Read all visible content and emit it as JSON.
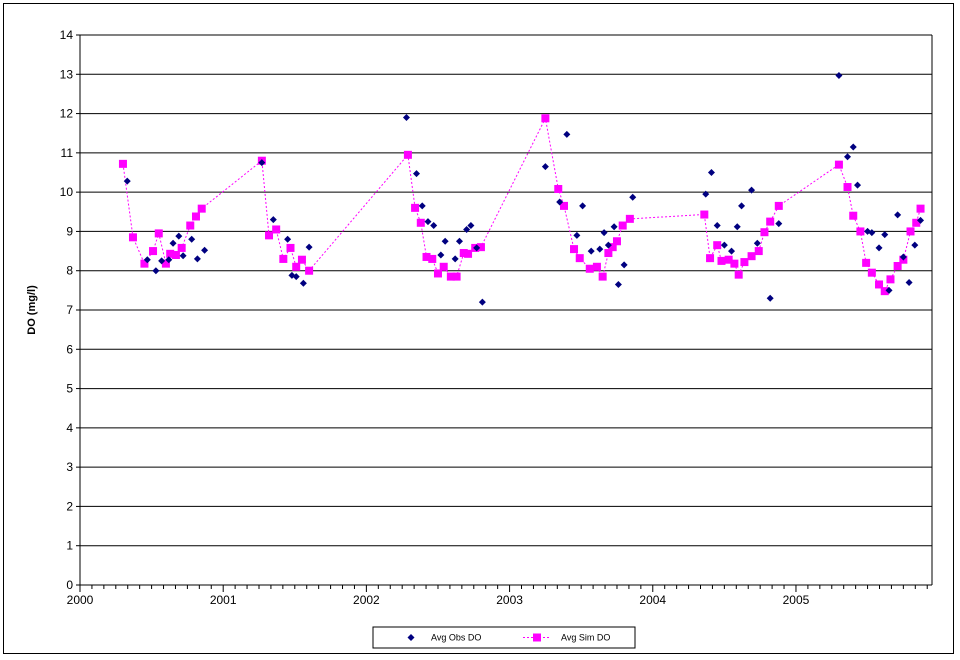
{
  "chart_data": {
    "type": "scatter",
    "title": "",
    "xlabel": "",
    "ylabel": "DO (mg/l)",
    "xlim": [
      2000,
      2005.95
    ],
    "ylim": [
      0,
      14
    ],
    "x_ticks": [
      "2000",
      "2001",
      "2002",
      "2003",
      "2004",
      "2005"
    ],
    "y_ticks": [
      "0",
      "1",
      "2",
      "3",
      "4",
      "5",
      "6",
      "7",
      "8",
      "9",
      "10",
      "11",
      "12",
      "13",
      "14"
    ],
    "grid": "horizontal",
    "legend_position": "bottom",
    "series": [
      {
        "name": "Avg Obs DO",
        "style": "marker-diamond",
        "color": "#000080",
        "points": [
          [
            2000.33,
            10.28
          ],
          [
            2000.47,
            8.28
          ],
          [
            2000.53,
            8.0
          ],
          [
            2000.57,
            8.25
          ],
          [
            2000.62,
            8.28
          ],
          [
            2000.65,
            8.7
          ],
          [
            2000.69,
            8.88
          ],
          [
            2000.72,
            8.38
          ],
          [
            2000.78,
            8.8
          ],
          [
            2000.82,
            8.3
          ],
          [
            2000.87,
            8.52
          ],
          [
            2001.27,
            10.75
          ],
          [
            2001.35,
            9.3
          ],
          [
            2001.45,
            8.8
          ],
          [
            2001.48,
            7.88
          ],
          [
            2001.51,
            7.85
          ],
          [
            2001.56,
            7.68
          ],
          [
            2001.6,
            8.6
          ],
          [
            2002.28,
            11.9
          ],
          [
            2002.35,
            10.47
          ],
          [
            2002.39,
            9.65
          ],
          [
            2002.43,
            9.25
          ],
          [
            2002.47,
            9.15
          ],
          [
            2002.52,
            8.4
          ],
          [
            2002.55,
            8.75
          ],
          [
            2002.62,
            8.3
          ],
          [
            2002.65,
            8.75
          ],
          [
            2002.7,
            9.05
          ],
          [
            2002.73,
            9.15
          ],
          [
            2002.77,
            8.58
          ],
          [
            2002.81,
            7.2
          ],
          [
            2003.25,
            10.65
          ],
          [
            2003.35,
            9.75
          ],
          [
            2003.4,
            11.47
          ],
          [
            2003.47,
            8.9
          ],
          [
            2003.51,
            9.65
          ],
          [
            2003.57,
            8.5
          ],
          [
            2003.63,
            8.55
          ],
          [
            2003.66,
            8.97
          ],
          [
            2003.69,
            8.65
          ],
          [
            2003.73,
            9.12
          ],
          [
            2003.76,
            7.65
          ],
          [
            2003.8,
            8.15
          ],
          [
            2003.86,
            9.87
          ],
          [
            2004.37,
            9.95
          ],
          [
            2004.41,
            10.5
          ],
          [
            2004.45,
            9.15
          ],
          [
            2004.5,
            8.65
          ],
          [
            2004.55,
            8.5
          ],
          [
            2004.59,
            9.12
          ],
          [
            2004.62,
            9.65
          ],
          [
            2004.69,
            10.05
          ],
          [
            2004.73,
            8.7
          ],
          [
            2004.82,
            7.3
          ],
          [
            2004.88,
            9.2
          ],
          [
            2005.3,
            12.97
          ],
          [
            2005.36,
            10.9
          ],
          [
            2005.4,
            11.15
          ],
          [
            2005.43,
            10.18
          ],
          [
            2005.5,
            9.0
          ],
          [
            2005.53,
            8.97
          ],
          [
            2005.58,
            8.58
          ],
          [
            2005.62,
            8.92
          ],
          [
            2005.65,
            7.5
          ],
          [
            2005.71,
            9.42
          ],
          [
            2005.75,
            8.35
          ],
          [
            2005.79,
            7.7
          ],
          [
            2005.83,
            8.65
          ],
          [
            2005.87,
            9.28
          ]
        ]
      },
      {
        "name": "Avg Sim DO",
        "style": "marker-square-dotted-line",
        "color": "#ff00ff",
        "points": [
          [
            2000.3,
            10.72
          ],
          [
            2000.37,
            8.85
          ],
          [
            2000.45,
            8.18
          ],
          [
            2000.51,
            8.5
          ],
          [
            2000.55,
            8.95
          ],
          [
            2000.6,
            8.18
          ],
          [
            2000.63,
            8.43
          ],
          [
            2000.67,
            8.4
          ],
          [
            2000.71,
            8.58
          ],
          [
            2000.77,
            9.15
          ],
          [
            2000.81,
            9.38
          ],
          [
            2000.85,
            9.58
          ],
          [
            2001.27,
            10.8
          ],
          [
            2001.32,
            8.9
          ],
          [
            2001.37,
            9.05
          ],
          [
            2001.42,
            8.3
          ],
          [
            2001.47,
            8.58
          ],
          [
            2001.51,
            8.1
          ],
          [
            2001.55,
            8.28
          ],
          [
            2001.6,
            8.0
          ],
          [
            2002.29,
            10.95
          ],
          [
            2002.34,
            9.6
          ],
          [
            2002.38,
            9.22
          ],
          [
            2002.42,
            8.35
          ],
          [
            2002.46,
            8.3
          ],
          [
            2002.5,
            7.93
          ],
          [
            2002.54,
            8.1
          ],
          [
            2002.59,
            7.85
          ],
          [
            2002.63,
            7.85
          ],
          [
            2002.68,
            8.45
          ],
          [
            2002.71,
            8.43
          ],
          [
            2002.76,
            8.58
          ],
          [
            2002.8,
            8.6
          ],
          [
            2003.25,
            11.88
          ],
          [
            2003.34,
            10.08
          ],
          [
            2003.38,
            9.65
          ],
          [
            2003.45,
            8.55
          ],
          [
            2003.49,
            8.32
          ],
          [
            2003.56,
            8.05
          ],
          [
            2003.61,
            8.1
          ],
          [
            2003.65,
            7.85
          ],
          [
            2003.69,
            8.45
          ],
          [
            2003.72,
            8.6
          ],
          [
            2003.75,
            8.75
          ],
          [
            2003.79,
            9.15
          ],
          [
            2003.84,
            9.32
          ],
          [
            2004.36,
            9.43
          ],
          [
            2004.4,
            8.32
          ],
          [
            2004.45,
            8.65
          ],
          [
            2004.48,
            8.25
          ],
          [
            2004.53,
            8.28
          ],
          [
            2004.57,
            8.18
          ],
          [
            2004.6,
            7.9
          ],
          [
            2004.64,
            8.22
          ],
          [
            2004.69,
            8.37
          ],
          [
            2004.74,
            8.5
          ],
          [
            2004.78,
            8.98
          ],
          [
            2004.82,
            9.25
          ],
          [
            2004.88,
            9.65
          ],
          [
            2005.3,
            10.7
          ],
          [
            2005.36,
            10.13
          ],
          [
            2005.4,
            9.4
          ],
          [
            2005.45,
            9.0
          ],
          [
            2005.49,
            8.2
          ],
          [
            2005.53,
            7.95
          ],
          [
            2005.58,
            7.65
          ],
          [
            2005.62,
            7.48
          ],
          [
            2005.66,
            7.78
          ],
          [
            2005.71,
            8.12
          ],
          [
            2005.75,
            8.28
          ],
          [
            2005.8,
            9.0
          ],
          [
            2005.84,
            9.22
          ],
          [
            2005.87,
            9.58
          ]
        ]
      }
    ]
  }
}
